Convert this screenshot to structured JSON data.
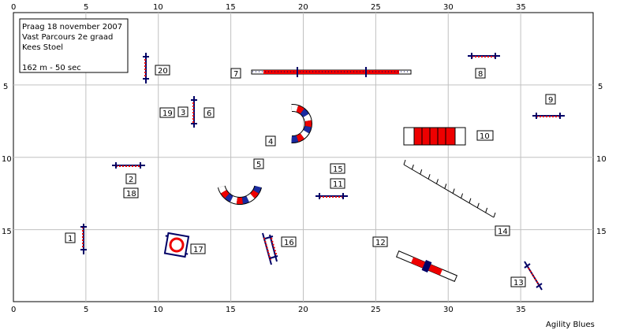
{
  "course_info": {
    "lines": [
      "Praag 18 november 2007",
      "Vast Parcours 2e graad",
      "Kees Stoel",
      "",
      "162 m - 50 sec"
    ]
  },
  "credit": "Agility Blues",
  "axis": {
    "top_ticks": [
      "0",
      "5",
      "10",
      "15",
      "20",
      "25",
      "30",
      "35"
    ],
    "bottom_ticks": [
      "0",
      "5",
      "10",
      "15",
      "20",
      "25",
      "30",
      "35"
    ],
    "left_ticks": [
      "5",
      "10",
      "15"
    ],
    "right_ticks": [
      "5",
      "10",
      "15"
    ],
    "x_range": [
      0,
      40
    ],
    "y_range": [
      0,
      20
    ]
  },
  "colors": {
    "red": "#ee0000",
    "blue": "#1a2aa0",
    "navy": "#000066",
    "grid": "#c0c0c0"
  },
  "obstacles": [
    {
      "kind": "jump",
      "name": "jump-1"
    },
    {
      "kind": "jump",
      "name": "jump-2"
    },
    {
      "kind": "jump",
      "name": "jump-3"
    },
    {
      "kind": "tunnel",
      "name": "tunnel-4"
    },
    {
      "kind": "tunnel",
      "name": "tunnel-5"
    },
    {
      "kind": "jump",
      "name": "jump-8"
    },
    {
      "kind": "jump",
      "name": "jump-9"
    },
    {
      "kind": "dogwalk",
      "name": "dogwalk-7"
    },
    {
      "kind": "tunnel",
      "name": "collapsed-tunnel-10"
    },
    {
      "kind": "jump",
      "name": "jump-11"
    },
    {
      "kind": "seesaw",
      "name": "seesaw-12"
    },
    {
      "kind": "jump",
      "name": "jump-13"
    },
    {
      "kind": "weave",
      "name": "weave-poles-14"
    },
    {
      "kind": "jump",
      "name": "spread-jump-16"
    },
    {
      "kind": "tyre",
      "name": "tyre-17"
    },
    {
      "kind": "jump",
      "name": "jump-20"
    }
  ],
  "labels": [
    "1",
    "2",
    "3",
    "4",
    "5",
    "6",
    "7",
    "8",
    "9",
    "10",
    "11",
    "12",
    "13",
    "14",
    "15",
    "16",
    "17",
    "18",
    "19",
    "20"
  ]
}
